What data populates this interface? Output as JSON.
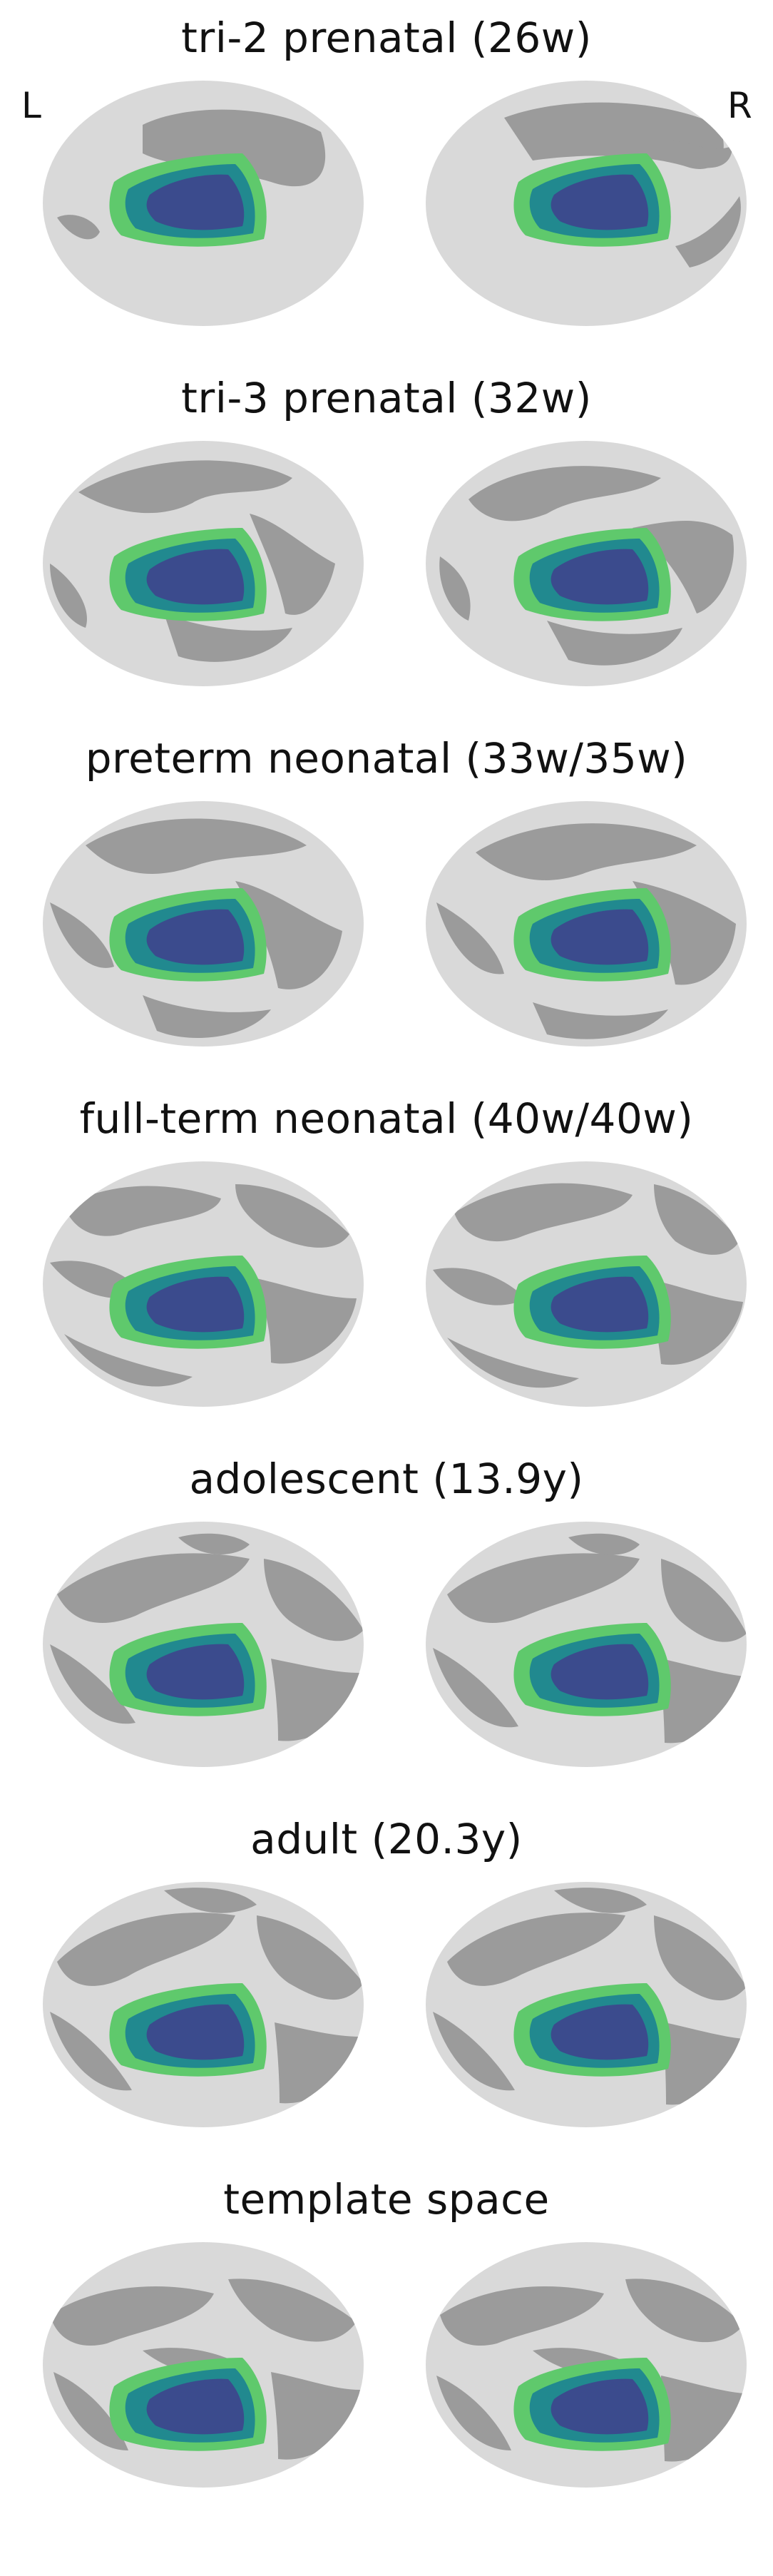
{
  "hemisphere_labels": {
    "left": "L",
    "right": "R"
  },
  "colors": {
    "gyri": "#d9d9d9",
    "sulci": "#9b9b9b",
    "outer_region": "#5fc96c",
    "middle_region": "#21898f",
    "inner_region": "#3b4b8d"
  },
  "panels": [
    {
      "title": "tri-2 prenatal (26w)"
    },
    {
      "title": "tri-3 prenatal (32w)"
    },
    {
      "title": "preterm neonatal (33w/35w)"
    },
    {
      "title": "full-term neonatal (40w/40w)"
    },
    {
      "title": "adolescent (13.9y)"
    },
    {
      "title": "adult (20.3y)"
    },
    {
      "title": "template space"
    }
  ]
}
